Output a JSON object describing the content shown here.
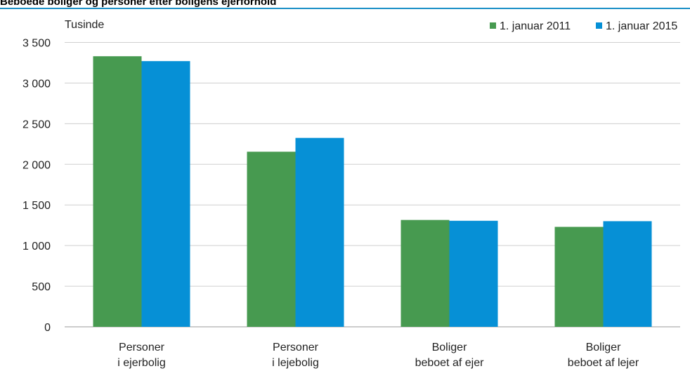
{
  "chart_data": {
    "type": "bar",
    "title": "Beboede boliger og personer efter boligens ejerforhold",
    "unit_label": "Tusinde",
    "categories": [
      [
        "Personer",
        "i ejerbolig"
      ],
      [
        "Personer",
        "i lejebolig"
      ],
      [
        "Boliger",
        "beboet af ejer"
      ],
      [
        "Boliger",
        "beboet af lejer"
      ]
    ],
    "series": [
      {
        "name": "1. januar 2011",
        "color": "#479a50",
        "values": [
          3330,
          2155,
          1315,
          1230
        ]
      },
      {
        "name": "1. januar 2015",
        "color": "#0690d6",
        "values": [
          3270,
          2325,
          1305,
          1300
        ]
      }
    ],
    "ylim": [
      0,
      3500
    ],
    "yticks": [
      0,
      500,
      1000,
      1500,
      2000,
      2500,
      3000,
      3500
    ],
    "ytick_labels": [
      "0",
      "500",
      "1 000",
      "1 500",
      "2 000",
      "2 500",
      "3 000",
      "3 500"
    ],
    "grid": true,
    "legend_position": "top-right"
  }
}
